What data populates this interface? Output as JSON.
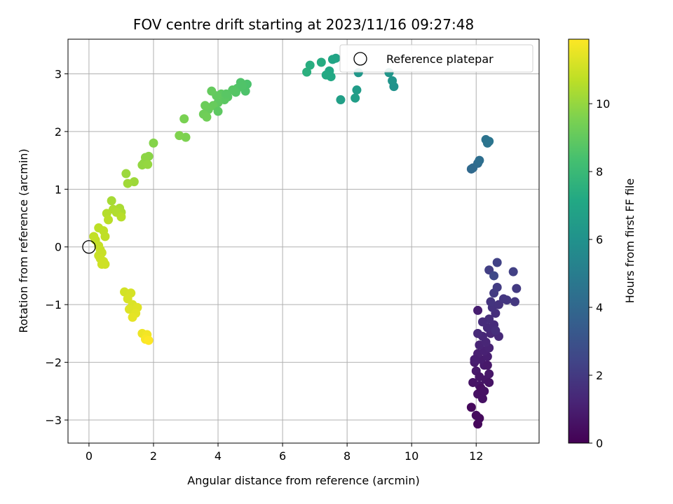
{
  "chart_data": {
    "type": "scatter",
    "title": "FOV centre drift starting at 2023/11/16 09:27:48",
    "xlabel": "Angular distance from reference (arcmin)",
    "ylabel": "Rotation from reference (arcmin)",
    "xlim": [
      -0.65,
      13.95
    ],
    "ylim": [
      -3.4,
      3.6
    ],
    "xticks": [
      0,
      2,
      4,
      6,
      8,
      10,
      12
    ],
    "yticks": [
      -3,
      -2,
      -1,
      0,
      1,
      2,
      3
    ],
    "grid": true,
    "legend": {
      "placement": "top-right",
      "entries": [
        "Reference platepar"
      ]
    },
    "reference_point": {
      "x": 0,
      "y": 0
    },
    "colorbar": {
      "label": "Hours from first FF file",
      "range": [
        0,
        11.9
      ],
      "ticks": [
        0,
        2,
        4,
        6,
        8,
        10
      ],
      "colormap": "viridis"
    },
    "points": [
      {
        "x": 12.05,
        "y": -3.07,
        "c": 0.2
      },
      {
        "x": 12.1,
        "y": -2.97,
        "c": 0.3
      },
      {
        "x": 12.0,
        "y": -2.92,
        "c": 0.35
      },
      {
        "x": 11.85,
        "y": -2.78,
        "c": 0.25
      },
      {
        "x": 12.05,
        "y": -2.55,
        "c": 0.5
      },
      {
        "x": 12.2,
        "y": -2.63,
        "c": 0.55
      },
      {
        "x": 11.9,
        "y": -2.35,
        "c": 0.6
      },
      {
        "x": 12.1,
        "y": -2.4,
        "c": 0.65
      },
      {
        "x": 12.3,
        "y": -2.3,
        "c": 0.7
      },
      {
        "x": 12.4,
        "y": -2.2,
        "c": 0.75
      },
      {
        "x": 12.0,
        "y": -2.15,
        "c": 0.8
      },
      {
        "x": 12.25,
        "y": -2.05,
        "c": 0.85
      },
      {
        "x": 11.95,
        "y": -2.0,
        "c": 0.9
      },
      {
        "x": 12.15,
        "y": -1.95,
        "c": 0.95
      },
      {
        "x": 12.35,
        "y": -1.9,
        "c": 1.0
      },
      {
        "x": 12.05,
        "y": -1.85,
        "c": 1.05
      },
      {
        "x": 12.25,
        "y": -1.8,
        "c": 1.1
      },
      {
        "x": 12.4,
        "y": -1.75,
        "c": 1.15
      },
      {
        "x": 12.1,
        "y": -1.7,
        "c": 1.2
      },
      {
        "x": 12.3,
        "y": -1.65,
        "c": 1.25
      },
      {
        "x": 12.2,
        "y": -1.55,
        "c": 1.3
      },
      {
        "x": 12.45,
        "y": -1.5,
        "c": 1.35
      },
      {
        "x": 12.05,
        "y": -1.5,
        "c": 1.4
      },
      {
        "x": 12.35,
        "y": -1.4,
        "c": 1.45
      },
      {
        "x": 12.55,
        "y": -1.35,
        "c": 1.5
      },
      {
        "x": 12.4,
        "y": -1.25,
        "c": 1.55
      },
      {
        "x": 12.6,
        "y": -1.15,
        "c": 1.6
      },
      {
        "x": 12.05,
        "y": -1.1,
        "c": 1.0
      },
      {
        "x": 12.5,
        "y": -1.05,
        "c": 1.7
      },
      {
        "x": 12.7,
        "y": -1.0,
        "c": 1.75
      },
      {
        "x": 12.45,
        "y": -0.95,
        "c": 1.8
      },
      {
        "x": 12.85,
        "y": -0.9,
        "c": 1.85
      },
      {
        "x": 12.95,
        "y": -0.92,
        "c": 1.9
      },
      {
        "x": 13.2,
        "y": -0.95,
        "c": 1.95
      },
      {
        "x": 13.25,
        "y": -0.72,
        "c": 2.0
      },
      {
        "x": 12.55,
        "y": -0.8,
        "c": 2.05
      },
      {
        "x": 12.65,
        "y": -0.7,
        "c": 2.1
      },
      {
        "x": 12.4,
        "y": -0.4,
        "c": 2.2
      },
      {
        "x": 12.55,
        "y": -0.5,
        "c": 2.6
      },
      {
        "x": 12.65,
        "y": -0.27,
        "c": 2.3
      },
      {
        "x": 13.15,
        "y": -0.43,
        "c": 2.25
      },
      {
        "x": 12.7,
        "y": -1.55,
        "c": 1.4
      },
      {
        "x": 12.15,
        "y": -2.45,
        "c": 0.45
      },
      {
        "x": 12.25,
        "y": -2.5,
        "c": 0.55
      },
      {
        "x": 12.4,
        "y": -2.35,
        "c": 0.6
      },
      {
        "x": 11.95,
        "y": -1.95,
        "c": 1.0
      },
      {
        "x": 12.1,
        "y": -2.25,
        "c": 0.7
      },
      {
        "x": 12.35,
        "y": -2.05,
        "c": 0.8
      },
      {
        "x": 12.2,
        "y": -1.3,
        "c": 1.5
      },
      {
        "x": 12.6,
        "y": -1.45,
        "c": 1.6
      },
      {
        "x": 11.85,
        "y": 1.35,
        "c": 4.0
      },
      {
        "x": 11.9,
        "y": 1.37,
        "c": 4.1
      },
      {
        "x": 12.05,
        "y": 1.45,
        "c": 4.2
      },
      {
        "x": 12.1,
        "y": 1.5,
        "c": 4.3
      },
      {
        "x": 12.3,
        "y": 1.86,
        "c": 4.5
      },
      {
        "x": 12.4,
        "y": 1.83,
        "c": 4.6
      },
      {
        "x": 12.35,
        "y": 1.8,
        "c": 4.55
      },
      {
        "x": 9.45,
        "y": 2.78,
        "c": 6.0
      },
      {
        "x": 9.4,
        "y": 2.88,
        "c": 6.1
      },
      {
        "x": 9.3,
        "y": 3.02,
        "c": 6.2
      },
      {
        "x": 8.35,
        "y": 3.02,
        "c": 6.3
      },
      {
        "x": 8.3,
        "y": 2.72,
        "c": 6.5
      },
      {
        "x": 8.25,
        "y": 2.58,
        "c": 6.6
      },
      {
        "x": 7.8,
        "y": 2.55,
        "c": 6.7
      },
      {
        "x": 7.65,
        "y": 3.27,
        "c": 6.9
      },
      {
        "x": 7.55,
        "y": 3.25,
        "c": 7.0
      },
      {
        "x": 7.45,
        "y": 3.05,
        "c": 7.1
      },
      {
        "x": 7.5,
        "y": 2.95,
        "c": 7.15
      },
      {
        "x": 7.35,
        "y": 2.98,
        "c": 7.2
      },
      {
        "x": 7.2,
        "y": 3.2,
        "c": 7.3
      },
      {
        "x": 6.85,
        "y": 3.15,
        "c": 7.4
      },
      {
        "x": 6.75,
        "y": 3.03,
        "c": 7.5
      },
      {
        "x": 4.9,
        "y": 2.82,
        "c": 8.5
      },
      {
        "x": 4.85,
        "y": 2.7,
        "c": 8.55
      },
      {
        "x": 4.7,
        "y": 2.85,
        "c": 8.6
      },
      {
        "x": 4.6,
        "y": 2.75,
        "c": 8.65
      },
      {
        "x": 4.55,
        "y": 2.68,
        "c": 8.7
      },
      {
        "x": 4.45,
        "y": 2.72,
        "c": 8.75
      },
      {
        "x": 4.3,
        "y": 2.6,
        "c": 8.8
      },
      {
        "x": 4.2,
        "y": 2.55,
        "c": 8.85
      },
      {
        "x": 4.1,
        "y": 2.65,
        "c": 8.9
      },
      {
        "x": 4.0,
        "y": 2.5,
        "c": 8.95
      },
      {
        "x": 3.95,
        "y": 2.62,
        "c": 9.0
      },
      {
        "x": 3.8,
        "y": 2.7,
        "c": 9.05
      },
      {
        "x": 3.85,
        "y": 2.45,
        "c": 9.1
      },
      {
        "x": 3.7,
        "y": 2.38,
        "c": 9.15
      },
      {
        "x": 3.6,
        "y": 2.45,
        "c": 9.2
      },
      {
        "x": 3.55,
        "y": 2.3,
        "c": 9.25
      },
      {
        "x": 3.65,
        "y": 2.25,
        "c": 9.3
      },
      {
        "x": 4.0,
        "y": 2.35,
        "c": 8.9
      },
      {
        "x": 4.75,
        "y": 2.8,
        "c": 8.6
      },
      {
        "x": 4.25,
        "y": 2.65,
        "c": 8.8
      },
      {
        "x": 2.95,
        "y": 2.22,
        "c": 9.5
      },
      {
        "x": 3.0,
        "y": 1.9,
        "c": 9.55
      },
      {
        "x": 2.8,
        "y": 1.93,
        "c": 9.6
      },
      {
        "x": 2.0,
        "y": 1.8,
        "c": 9.7
      },
      {
        "x": 1.85,
        "y": 1.57,
        "c": 9.8
      },
      {
        "x": 1.75,
        "y": 1.55,
        "c": 9.85
      },
      {
        "x": 1.7,
        "y": 1.45,
        "c": 9.9
      },
      {
        "x": 1.65,
        "y": 1.42,
        "c": 9.95
      },
      {
        "x": 1.82,
        "y": 1.43,
        "c": 10.0
      },
      {
        "x": 1.15,
        "y": 1.27,
        "c": 10.1
      },
      {
        "x": 1.4,
        "y": 1.13,
        "c": 10.15
      },
      {
        "x": 1.2,
        "y": 1.1,
        "c": 10.2
      },
      {
        "x": 0.7,
        "y": 0.8,
        "c": 10.3
      },
      {
        "x": 0.95,
        "y": 0.67,
        "c": 10.35
      },
      {
        "x": 1.0,
        "y": 0.6,
        "c": 10.4
      },
      {
        "x": 0.75,
        "y": 0.65,
        "c": 10.45
      },
      {
        "x": 0.85,
        "y": 0.6,
        "c": 10.5
      },
      {
        "x": 0.55,
        "y": 0.58,
        "c": 10.55
      },
      {
        "x": 1.0,
        "y": 0.52,
        "c": 10.6
      },
      {
        "x": 0.6,
        "y": 0.47,
        "c": 10.65
      },
      {
        "x": 0.3,
        "y": 0.33,
        "c": 10.7
      },
      {
        "x": 0.45,
        "y": 0.28,
        "c": 10.72
      },
      {
        "x": 0.5,
        "y": 0.18,
        "c": 10.75
      },
      {
        "x": 0.15,
        "y": 0.18,
        "c": 10.8
      },
      {
        "x": 0.2,
        "y": 0.12,
        "c": 10.82
      },
      {
        "x": 0.3,
        "y": 0.02,
        "c": 10.85
      },
      {
        "x": 0.35,
        "y": -0.05,
        "c": 10.87
      },
      {
        "x": 0.4,
        "y": -0.1,
        "c": 10.9
      },
      {
        "x": 0.3,
        "y": -0.15,
        "c": 10.92
      },
      {
        "x": 0.35,
        "y": -0.2,
        "c": 10.95
      },
      {
        "x": 0.45,
        "y": -0.25,
        "c": 10.97
      },
      {
        "x": 0.5,
        "y": -0.3,
        "c": 11.0
      },
      {
        "x": 0.4,
        "y": -0.3,
        "c": 11.02
      },
      {
        "x": 1.1,
        "y": -0.78,
        "c": 11.1
      },
      {
        "x": 1.3,
        "y": -0.8,
        "c": 11.15
      },
      {
        "x": 1.2,
        "y": -0.9,
        "c": 11.2
      },
      {
        "x": 1.35,
        "y": -1.0,
        "c": 11.25
      },
      {
        "x": 1.25,
        "y": -1.08,
        "c": 11.3
      },
      {
        "x": 1.5,
        "y": -1.05,
        "c": 11.35
      },
      {
        "x": 1.45,
        "y": -1.15,
        "c": 11.4
      },
      {
        "x": 1.35,
        "y": -1.22,
        "c": 11.45
      },
      {
        "x": 1.65,
        "y": -1.5,
        "c": 11.6
      },
      {
        "x": 1.8,
        "y": -1.52,
        "c": 11.7
      },
      {
        "x": 1.75,
        "y": -1.6,
        "c": 11.8
      },
      {
        "x": 1.85,
        "y": -1.62,
        "c": 11.9
      }
    ]
  }
}
